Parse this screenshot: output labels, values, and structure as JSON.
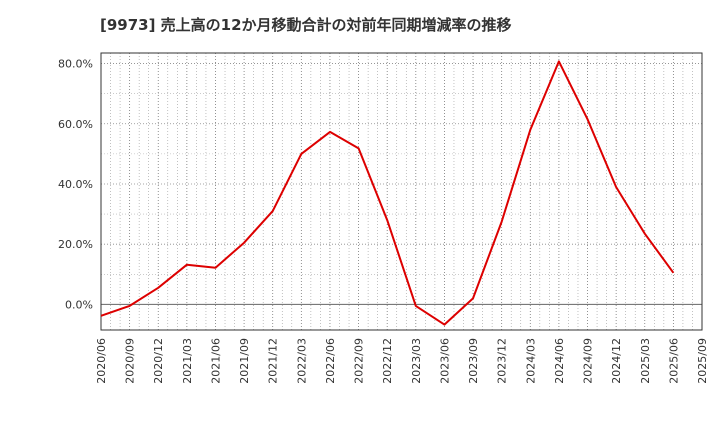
{
  "chart_data": {
    "type": "line",
    "title": "[9973]  売上高の12か月移動合計の対前年同期増減率の推移",
    "xlabel": "",
    "ylabel": "",
    "ylim": [
      -8.5,
      83.5
    ],
    "y_ticks": [
      0,
      20,
      40,
      60,
      80
    ],
    "y_tick_labels": [
      "0.0%",
      "20.0%",
      "40.0%",
      "60.0%",
      "80.0%"
    ],
    "grid": true,
    "legend": "none",
    "x_ticks": [
      "2020/06",
      "2020/09",
      "2020/12",
      "2021/03",
      "2021/06",
      "2021/09",
      "2021/12",
      "2022/03",
      "2022/06",
      "2022/09",
      "2022/12",
      "2023/03",
      "2023/06",
      "2023/09",
      "2023/12",
      "2024/03",
      "2024/06",
      "2024/09",
      "2024/12",
      "2025/03",
      "2025/06",
      "2025/09"
    ],
    "series": [
      {
        "color": "#dd0000",
        "x": [
          "2020/06",
          "2020/09",
          "2020/12",
          "2021/03",
          "2021/06",
          "2021/09",
          "2021/12",
          "2022/03",
          "2022/06",
          "2022/09",
          "2022/12",
          "2023/03",
          "2023/06",
          "2023/09",
          "2023/12",
          "2024/03",
          "2024/06",
          "2024/09",
          "2024/12",
          "2025/03",
          "2025/06"
        ],
        "values": [
          -3.8,
          -0.5,
          5.5,
          13.2,
          12.2,
          20.5,
          31.0,
          50.0,
          57.3,
          51.8,
          28.0,
          -0.5,
          -6.7,
          2.0,
          27.5,
          58.0,
          80.7,
          61.5,
          39.0,
          23.5,
          10.5
        ]
      }
    ]
  }
}
